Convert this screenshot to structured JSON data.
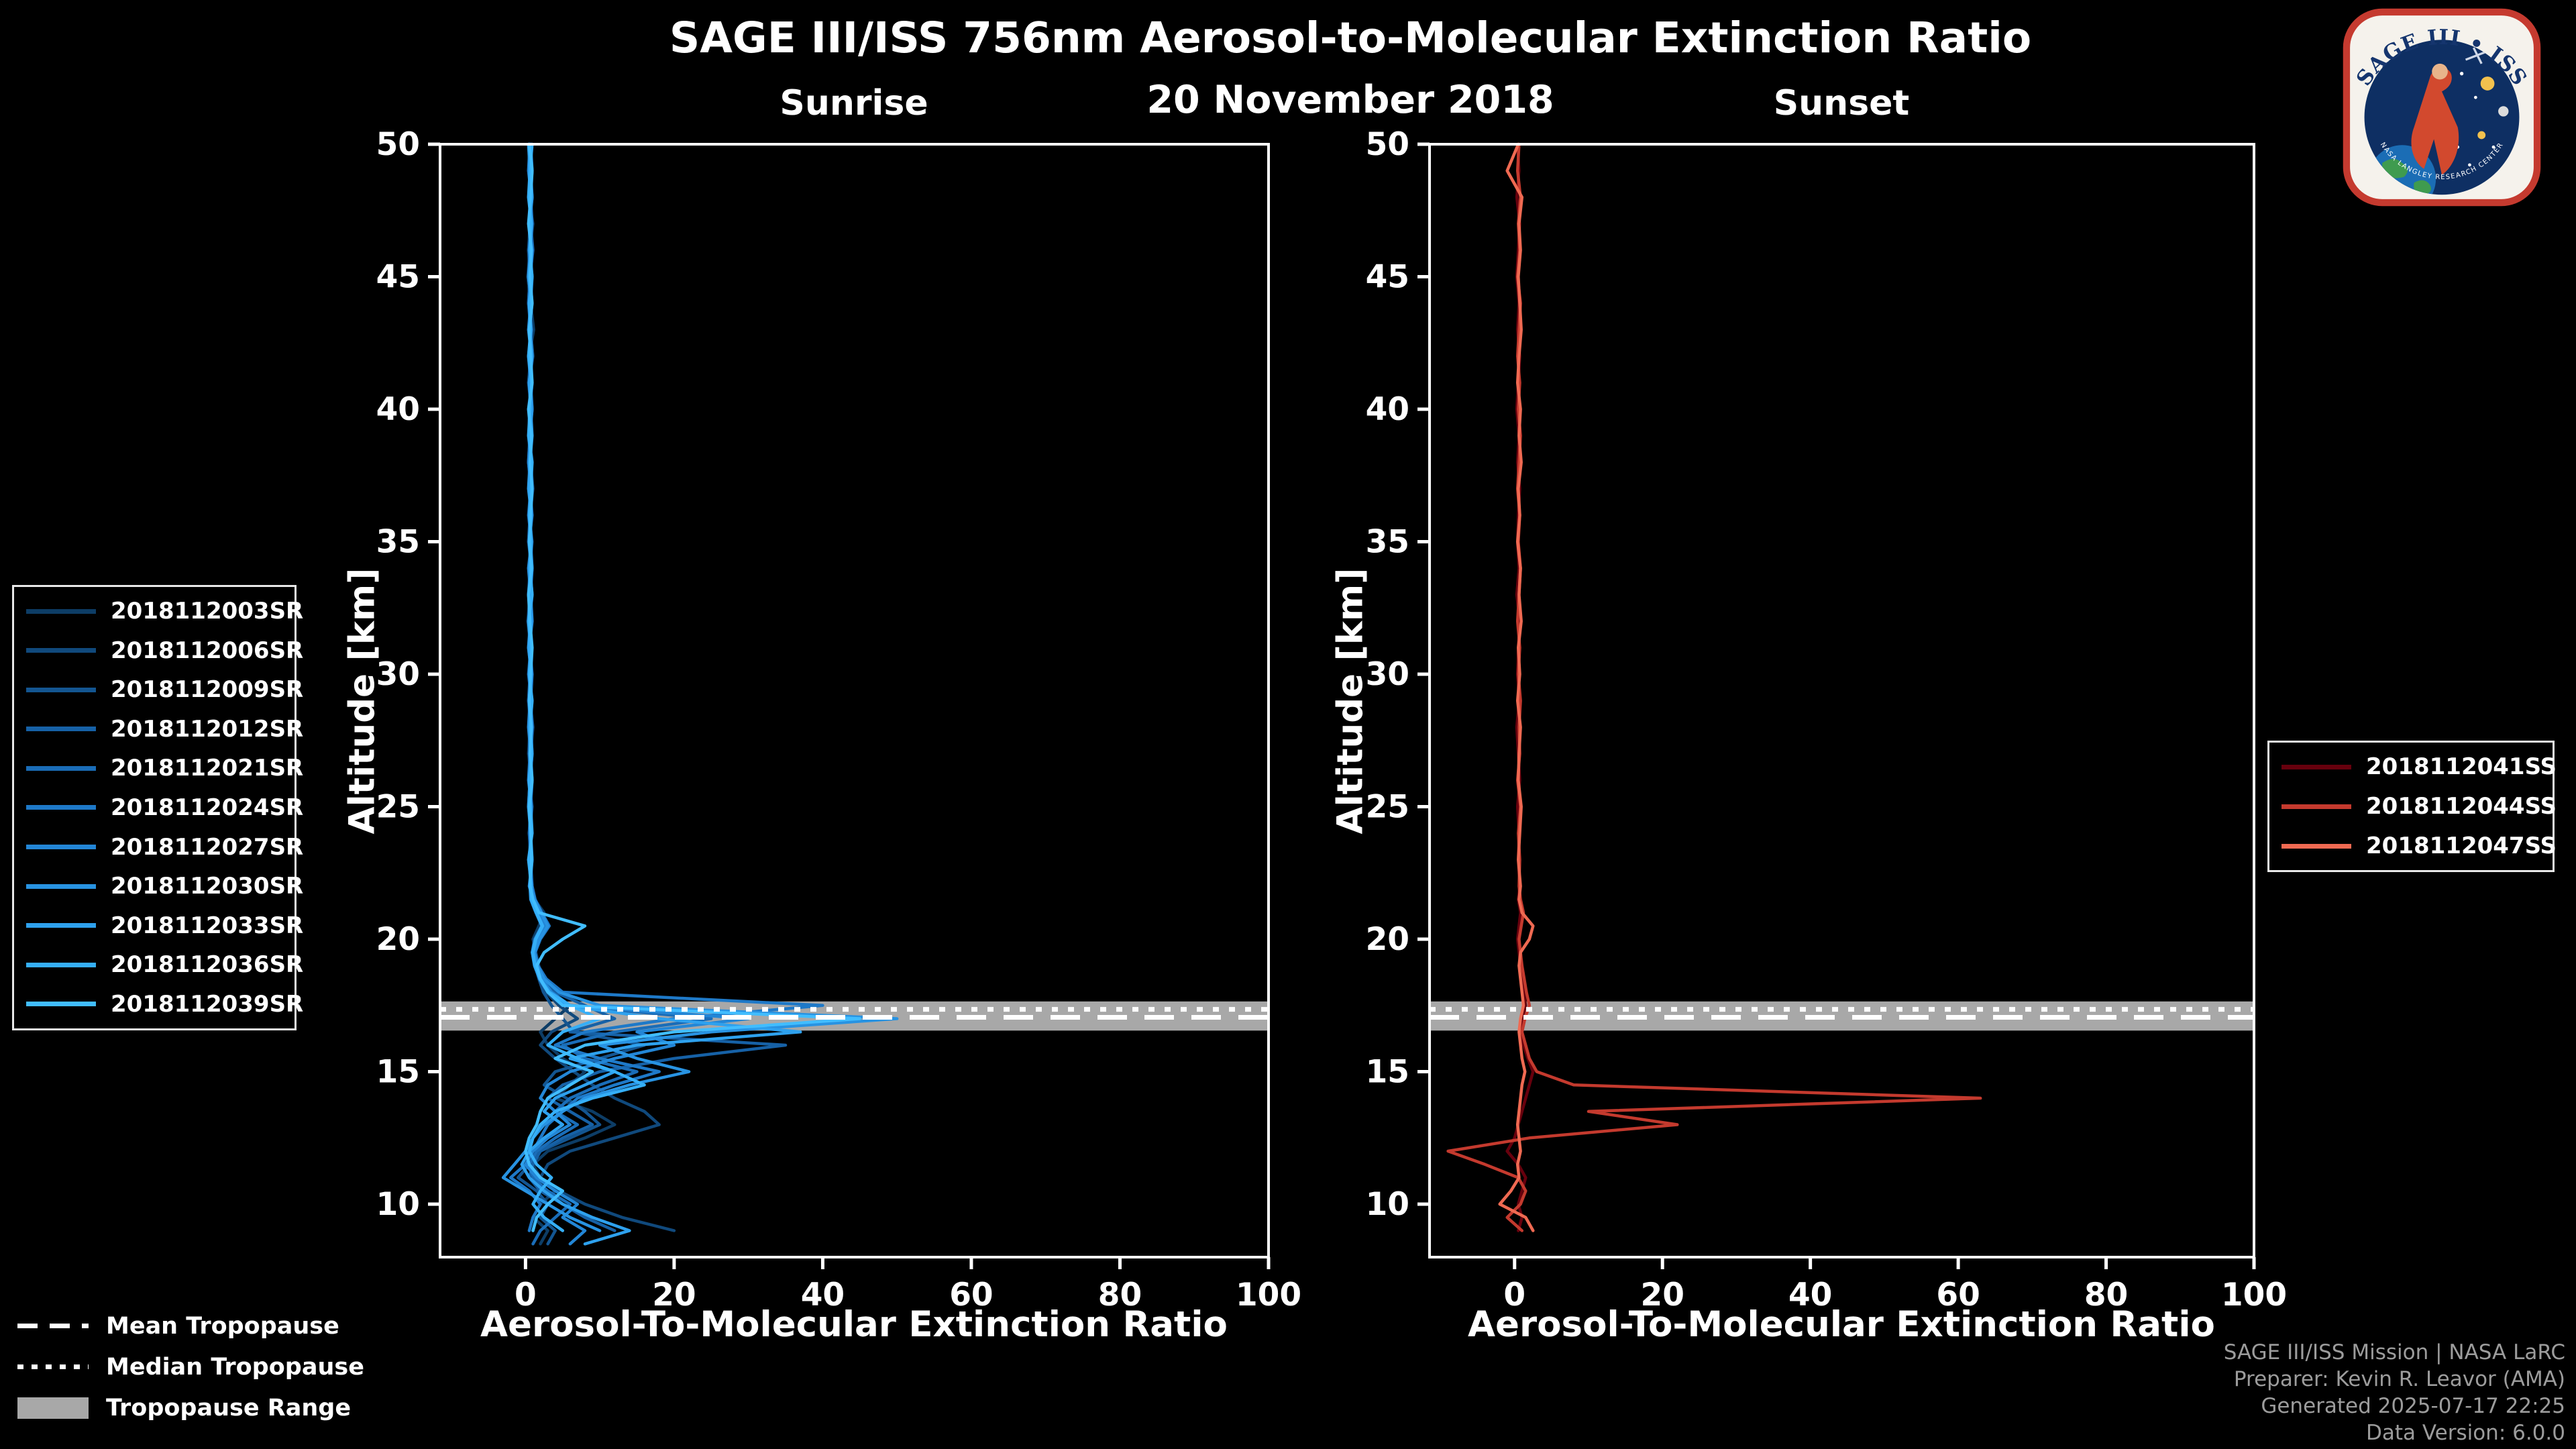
{
  "title": "SAGE III/ISS 756nm Aerosol-to-Molecular Extinction Ratio",
  "subtitle": "20 November 2018",
  "colors": {
    "background": "#000000",
    "axis": "#ffffff",
    "tropopause_band": "#a8a8a8",
    "tropopause_lines": "#ffffff"
  },
  "tropopause_legend": {
    "items": [
      {
        "label": "Mean Tropopause",
        "style": "dashed"
      },
      {
        "label": "Median Tropopause",
        "style": "dotted"
      },
      {
        "label": "Tropopause Range",
        "style": "band"
      }
    ]
  },
  "footer": {
    "lines": [
      "SAGE III/ISS Mission | NASA LaRC",
      "Preparer: Kevin R. Leavor (AMA)",
      "Generated 2025-07-17 22:25",
      "Data Version: 6.0.0"
    ]
  },
  "logo": {
    "arc_text": "SAGE III • ISS",
    "bottom_text": "NASA LANGLEY RESEARCH CENTER"
  },
  "chart_data": [
    {
      "type": "line",
      "title": "Sunrise",
      "xlabel": "Aerosol-To-Molecular Extinction Ratio",
      "ylabel": "Altitude [km]",
      "xlim": [
        -11.5,
        100
      ],
      "ylim": [
        8,
        50
      ],
      "xticks": [
        0,
        20,
        40,
        60,
        80,
        100
      ],
      "yticks": [
        10,
        15,
        20,
        25,
        30,
        35,
        40,
        45,
        50
      ],
      "tropopause": {
        "mean": 17.05,
        "median": 17.35,
        "range": [
          16.55,
          17.65
        ]
      },
      "altitudes": [
        50,
        49,
        48,
        47,
        46,
        45,
        44,
        43,
        42,
        41,
        40,
        39,
        38,
        37,
        36,
        35,
        34,
        33,
        32,
        31,
        30,
        29,
        28,
        27,
        26,
        25,
        24,
        23,
        22,
        21.5,
        21,
        20.5,
        20,
        19.5,
        19,
        18.5,
        18,
        17.5,
        17,
        16.5,
        16,
        15.5,
        15,
        14.5,
        14,
        13.5,
        13,
        12.5,
        12,
        11.5,
        11,
        10.5,
        10,
        9.5,
        9,
        8.5
      ],
      "series": [
        {
          "name": "2018112003SR",
          "color": "#0d3d66",
          "values": [
            0.5,
            0.8,
            0.4,
            1.0,
            0.6,
            0.3,
            0.7,
            1.1,
            0.5,
            0.8,
            0.4,
            0.6,
            0.9,
            0.5,
            0.7,
            0.4,
            0.8,
            0.6,
            0.3,
            0.7,
            0.5,
            0.9,
            0.6,
            0.4,
            0.8,
            0.5,
            0.7,
            0.6,
            0.8,
            1.2,
            2.5,
            1.8,
            1.0,
            1.4,
            1.8,
            2.2,
            3.0,
            6.0,
            4.0,
            2.0,
            3.0,
            5.0,
            8.0,
            6.0,
            4.0,
            9.0,
            12.0,
            8.0,
            3.0,
            1.0,
            2.0,
            4.0,
            2.0,
            1.0,
            3.0,
            2.0
          ]
        },
        {
          "name": "2018112006SR",
          "color": "#10497c",
          "values": [
            0.7,
            0.5,
            0.9,
            0.6,
            0.4,
            0.8,
            0.5,
            0.7,
            1.0,
            0.5,
            0.8,
            0.4,
            0.7,
            1.0,
            0.6,
            0.8,
            0.5,
            0.9,
            0.6,
            0.4,
            0.8,
            0.6,
            1.0,
            0.7,
            0.5,
            0.9,
            0.6,
            0.8,
            0.7,
            1.0,
            1.8,
            2.6,
            1.5,
            1.1,
            1.6,
            2.0,
            2.8,
            4.5,
            7.0,
            3.5,
            2.0,
            4.0,
            6.5,
            9.0,
            12.0,
            16.0,
            18.0,
            12.0,
            6.0,
            3.0,
            2.0,
            4.5,
            8.0,
            13.0,
            20.0,
            null
          ]
        },
        {
          "name": "2018112009SR",
          "color": "#135591",
          "values": [
            0.4,
            0.7,
            0.5,
            0.8,
            0.4,
            0.6,
            0.9,
            0.5,
            0.7,
            0.4,
            0.8,
            0.6,
            0.4,
            0.7,
            0.5,
            0.9,
            0.6,
            0.4,
            0.8,
            0.5,
            0.7,
            0.4,
            0.8,
            0.6,
            0.9,
            0.5,
            0.7,
            0.5,
            0.8,
            0.8,
            1.5,
            2.2,
            1.2,
            0.9,
            1.3,
            1.8,
            2.4,
            3.5,
            5.0,
            6.5,
            16.0,
            10.0,
            4.0,
            2.5,
            5.5,
            8.0,
            10.0,
            6.0,
            2.0,
            0.5,
            -1.0,
            1.5,
            3.0,
            2.0,
            4.0,
            3.0
          ]
        },
        {
          "name": "2018112012SR",
          "color": "#1661a6",
          "values": [
            0.6,
            0.9,
            0.5,
            0.7,
            1.0,
            0.6,
            0.4,
            0.8,
            0.6,
            0.9,
            0.5,
            0.7,
            0.4,
            0.8,
            0.6,
            0.4,
            0.9,
            0.7,
            0.5,
            0.8,
            0.6,
            0.4,
            0.7,
            0.9,
            0.6,
            0.8,
            0.5,
            0.7,
            0.9,
            1.1,
            2.0,
            3.0,
            1.8,
            1.2,
            1.5,
            2.5,
            4.0,
            8.0,
            12.0,
            6.0,
            35.0,
            20.0,
            10.0,
            5.0,
            3.0,
            6.0,
            9.0,
            5.0,
            2.0,
            1.0,
            0.5,
            2.0,
            5.0,
            8.0,
            12.0,
            null
          ]
        },
        {
          "name": "2018112021SR",
          "color": "#1a6db8",
          "values": [
            0.5,
            0.7,
            0.9,
            0.5,
            0.8,
            0.6,
            0.4,
            0.7,
            0.5,
            0.9,
            0.6,
            0.8,
            0.5,
            0.7,
            0.4,
            0.8,
            0.6,
            0.9,
            0.5,
            0.7,
            0.4,
            0.8,
            0.6,
            0.5,
            0.9,
            0.7,
            0.5,
            0.8,
            0.6,
            0.9,
            1.6,
            2.4,
            1.4,
            1.0,
            1.4,
            2.0,
            3.0,
            5.0,
            25.0,
            12.0,
            5.0,
            8.0,
            15.0,
            10.0,
            6.0,
            4.0,
            7.0,
            4.0,
            1.5,
            0.5,
            1.0,
            3.0,
            6.0,
            4.0,
            2.0,
            1.0
          ]
        },
        {
          "name": "2018112024SR",
          "color": "#1e79c8",
          "values": [
            0.8,
            0.5,
            0.7,
            0.9,
            0.6,
            0.4,
            0.8,
            0.6,
            0.9,
            0.5,
            0.7,
            0.5,
            0.8,
            0.6,
            0.9,
            0.5,
            0.7,
            0.4,
            0.8,
            0.6,
            0.9,
            0.7,
            0.5,
            0.8,
            0.6,
            0.4,
            0.8,
            0.6,
            0.9,
            1.3,
            2.2,
            3.2,
            2.0,
            1.3,
            1.7,
            2.8,
            5.0,
            40.0,
            20.0,
            8.0,
            4.0,
            10.0,
            18.0,
            12.0,
            7.0,
            5.0,
            3.0,
            2.0,
            1.0,
            0.0,
            -2.0,
            0.5,
            2.0,
            1.0,
            0.5,
            null
          ]
        },
        {
          "name": "2018112027SR",
          "color": "#2386d6",
          "values": [
            0.6,
            0.4,
            0.8,
            0.5,
            0.9,
            0.7,
            0.5,
            0.8,
            0.4,
            0.7,
            0.9,
            0.6,
            0.4,
            0.8,
            0.5,
            0.7,
            0.9,
            0.6,
            0.4,
            0.8,
            0.5,
            0.7,
            0.9,
            0.6,
            0.4,
            0.8,
            0.6,
            0.9,
            0.5,
            1.0,
            1.8,
            2.6,
            1.6,
            1.1,
            1.5,
            2.2,
            3.5,
            6.0,
            30.0,
            15.0,
            20.0,
            12.0,
            6.0,
            3.0,
            2.0,
            4.0,
            6.0,
            3.0,
            1.0,
            0.0,
            1.5,
            4.0,
            7.0,
            5.0,
            8.0,
            6.0
          ]
        },
        {
          "name": "2018112030SR",
          "color": "#2893e2",
          "values": [
            0.7,
            0.9,
            0.6,
            0.8,
            0.5,
            0.9,
            0.7,
            0.4,
            0.8,
            0.6,
            0.9,
            0.5,
            0.7,
            0.9,
            0.6,
            0.8,
            0.4,
            0.7,
            0.9,
            0.5,
            0.8,
            0.6,
            0.4,
            0.7,
            0.9,
            0.6,
            0.8,
            0.5,
            0.7,
            1.2,
            2.1,
            3.0,
            1.9,
            1.2,
            1.6,
            2.5,
            4.5,
            10.0,
            50.0,
            25.0,
            10.0,
            15.0,
            22.0,
            14.0,
            8.0,
            5.0,
            2.5,
            1.0,
            0.0,
            -1.5,
            -3.0,
            0.0,
            3.0,
            6.0,
            10.0,
            null
          ]
        },
        {
          "name": "2018112033SR",
          "color": "#2ea1ee",
          "values": [
            0.4,
            0.6,
            0.9,
            0.5,
            0.7,
            0.4,
            0.8,
            0.6,
            0.9,
            0.5,
            0.7,
            0.9,
            0.6,
            0.4,
            0.8,
            0.6,
            0.9,
            0.5,
            0.7,
            0.4,
            0.8,
            0.5,
            0.7,
            0.9,
            0.6,
            0.4,
            0.7,
            0.9,
            0.6,
            0.7,
            1.4,
            2.2,
            1.3,
            0.9,
            1.2,
            1.9,
            3.0,
            5.5,
            18.0,
            37.0,
            15.0,
            6.0,
            12.0,
            8.0,
            4.0,
            2.5,
            5.0,
            2.5,
            0.5,
            -0.5,
            0.5,
            2.5,
            5.0,
            9.0,
            14.0,
            8.0
          ]
        },
        {
          "name": "2018112036SR",
          "color": "#35aff8",
          "values": [
            0.9,
            0.6,
            0.4,
            0.8,
            0.6,
            0.9,
            0.5,
            0.7,
            0.4,
            0.8,
            0.6,
            0.4,
            0.9,
            0.7,
            0.5,
            0.8,
            0.6,
            0.9,
            0.4,
            0.7,
            0.5,
            0.9,
            0.6,
            0.8,
            0.5,
            0.7,
            0.9,
            0.4,
            0.8,
            0.8,
            1.5,
            2.3,
            1.4,
            1.0,
            1.3,
            2.0,
            3.2,
            6.0,
            10.0,
            5.0,
            3.0,
            7.0,
            12.0,
            16.0,
            9.0,
            4.0,
            2.0,
            1.0,
            0.5,
            1.5,
            3.5,
            2.0,
            1.0,
            2.5,
            5.0,
            null
          ]
        },
        {
          "name": "2018112039SR",
          "color": "#41bdff",
          "values": [
            0.5,
            0.9,
            0.7,
            0.4,
            0.8,
            0.6,
            0.9,
            0.5,
            0.7,
            0.9,
            0.4,
            0.8,
            0.6,
            0.9,
            0.7,
            0.5,
            0.8,
            0.4,
            0.6,
            0.9,
            0.7,
            0.5,
            0.8,
            0.6,
            0.9,
            0.5,
            0.7,
            0.8,
            0.6,
            1.0,
            1.8,
            8.0,
            5.0,
            2.5,
            1.5,
            2.0,
            3.0,
            5.0,
            45.0,
            20.0,
            8.0,
            4.0,
            9.0,
            6.0,
            3.0,
            2.0,
            1.5,
            0.5,
            0.0,
            0.5,
            2.0,
            5.0,
            3.0,
            1.5,
            1.0,
            null
          ]
        }
      ]
    },
    {
      "type": "line",
      "title": "Sunset",
      "xlabel": "Aerosol-To-Molecular Extinction Ratio",
      "ylabel": "Altitude [km]",
      "xlim": [
        -11.5,
        100
      ],
      "ylim": [
        8,
        50
      ],
      "xticks": [
        0,
        20,
        40,
        60,
        80,
        100
      ],
      "yticks": [
        10,
        15,
        20,
        25,
        30,
        35,
        40,
        45,
        50
      ],
      "tropopause": {
        "mean": 17.05,
        "median": 17.35,
        "range": [
          16.55,
          17.65
        ]
      },
      "altitudes": [
        50,
        49,
        48,
        47,
        46,
        45,
        44,
        43,
        42,
        41,
        40,
        39,
        38,
        37,
        36,
        35,
        34,
        33,
        32,
        31,
        30,
        29,
        28,
        27,
        26,
        25,
        24,
        23,
        22,
        21.5,
        21,
        20.5,
        20,
        19.5,
        19,
        18.5,
        18,
        17.5,
        17,
        16.5,
        16,
        15.5,
        15,
        14.5,
        14,
        13.5,
        13,
        12.5,
        12,
        11.5,
        11,
        10.5,
        10,
        9.5,
        9,
        8.5
      ],
      "series": [
        {
          "name": "2018112041SS",
          "color": "#67000d",
          "values": [
            0.4,
            0.6,
            0.3,
            0.7,
            0.5,
            0.3,
            0.6,
            0.4,
            0.7,
            0.5,
            0.3,
            0.6,
            0.4,
            0.7,
            0.5,
            0.4,
            0.6,
            0.3,
            0.7,
            0.5,
            0.4,
            0.6,
            0.3,
            0.5,
            0.7,
            0.4,
            0.6,
            0.5,
            0.7,
            0.5,
            0.8,
            0.6,
            0.4,
            0.6,
            0.8,
            1.0,
            1.2,
            1.5,
            1.0,
            0.8,
            1.2,
            1.8,
            2.5,
            2.0,
            1.5,
            1.0,
            0.5,
            0.0,
            -1.0,
            0.5,
            1.5,
            1.0,
            0.5,
            1.0,
            0.5,
            null
          ]
        },
        {
          "name": "2018112044SS",
          "color": "#c43a2e",
          "values": [
            0.6,
            0.4,
            0.8,
            0.5,
            0.7,
            0.4,
            0.8,
            0.6,
            0.4,
            0.7,
            0.5,
            0.8,
            0.6,
            0.4,
            0.7,
            0.5,
            0.8,
            0.6,
            0.4,
            0.7,
            0.5,
            0.8,
            0.6,
            0.7,
            0.4,
            0.8,
            0.5,
            0.7,
            0.6,
            0.8,
            1.2,
            0.9,
            0.6,
            0.8,
            1.0,
            1.3,
            1.6,
            2.0,
            1.4,
            1.0,
            1.5,
            2.0,
            3.0,
            8.0,
            63.0,
            10.0,
            22.0,
            2.0,
            -9.0,
            -4.0,
            0.5,
            1.5,
            0.8,
            -1.0,
            1.0,
            null
          ]
        },
        {
          "name": "2018112047SS",
          "color": "#f06a52",
          "values": [
            0.5,
            -1.0,
            1.0,
            0.6,
            0.8,
            0.5,
            0.7,
            0.9,
            0.6,
            0.4,
            0.8,
            0.6,
            0.9,
            0.5,
            0.7,
            0.4,
            0.8,
            0.6,
            0.9,
            0.5,
            0.7,
            0.4,
            0.8,
            0.6,
            0.5,
            0.9,
            0.7,
            0.5,
            0.8,
            0.6,
            1.0,
            2.5,
            2.0,
            0.8,
            0.6,
            0.8,
            1.0,
            1.2,
            0.8,
            0.6,
            0.8,
            1.0,
            1.4,
            1.0,
            0.8,
            0.6,
            0.4,
            0.6,
            0.8,
            0.4,
            0.6,
            -0.5,
            -2.0,
            1.5,
            2.5,
            null
          ]
        }
      ]
    }
  ]
}
